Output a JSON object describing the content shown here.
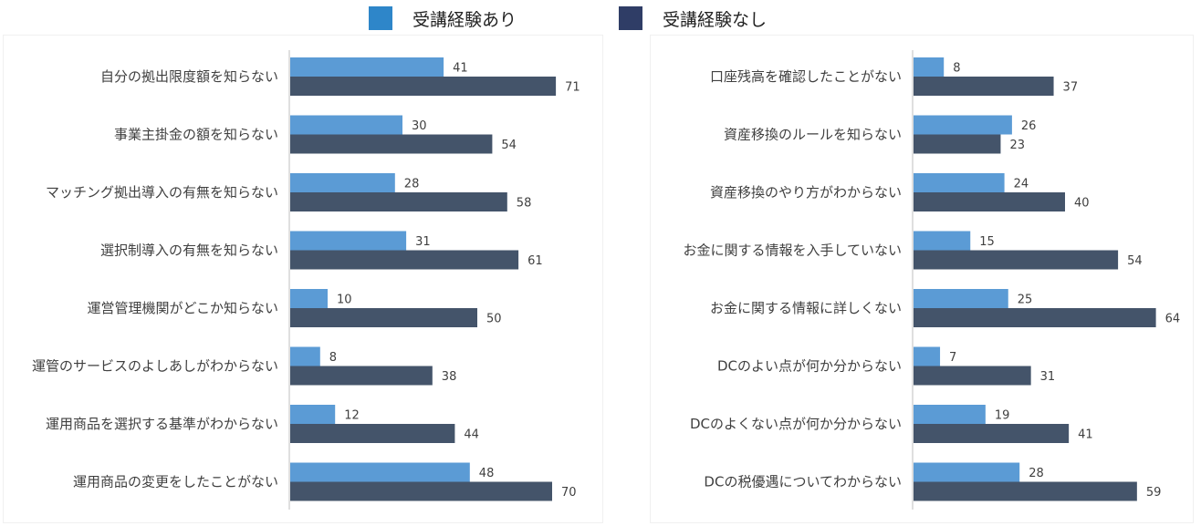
{
  "legend": {
    "items": [
      {
        "label": "受講経験あり",
        "color": "#5b9bd5"
      },
      {
        "label": "受講経験なし",
        "color": "#44546a"
      }
    ],
    "swatch_colors": [
      "#2e86c9",
      "#2f3d66"
    ]
  },
  "chart_data": [
    {
      "type": "bar",
      "orientation": "horizontal",
      "categories": [
        "自分の拠出限度額を知らない",
        "事業主掛金の額を知らない",
        "マッチング拠出導入の有無を知らない",
        "選択制導入の有無を知らない",
        "運営管理機関がどこか知らない",
        "運管のサービスのよしあしがわからない",
        "運用商品を選択する基準がわからない",
        "運用商品の変更をしたことがない"
      ],
      "series": [
        {
          "name": "受講経験あり",
          "values": [
            41,
            30,
            28,
            31,
            10,
            8,
            12,
            48
          ],
          "color": "#5b9bd5"
        },
        {
          "name": "受講経験なし",
          "values": [
            71,
            54,
            58,
            61,
            50,
            38,
            44,
            70
          ],
          "color": "#44546a"
        }
      ],
      "xlim": [
        0,
        80
      ],
      "grid": false,
      "legend": "top"
    },
    {
      "type": "bar",
      "orientation": "horizontal",
      "categories": [
        "口座残高を確認したことがない",
        "資産移換のルールを知らない",
        "資産移換のやり方がわからない",
        "お金に関する情報を入手していない",
        "お金に関する情報に詳しくない",
        "DCのよい点が何か分からない",
        "DCのよくない点が何か分からない",
        "DCの税優遇についてわからない"
      ],
      "series": [
        {
          "name": "受講経験あり",
          "values": [
            8,
            26,
            24,
            15,
            25,
            7,
            19,
            28
          ],
          "color": "#5b9bd5"
        },
        {
          "name": "受講経験なし",
          "values": [
            37,
            23,
            40,
            54,
            64,
            31,
            41,
            59
          ],
          "color": "#44546a"
        }
      ],
      "xlim": [
        0,
        70
      ],
      "grid": false,
      "legend": "top"
    }
  ]
}
